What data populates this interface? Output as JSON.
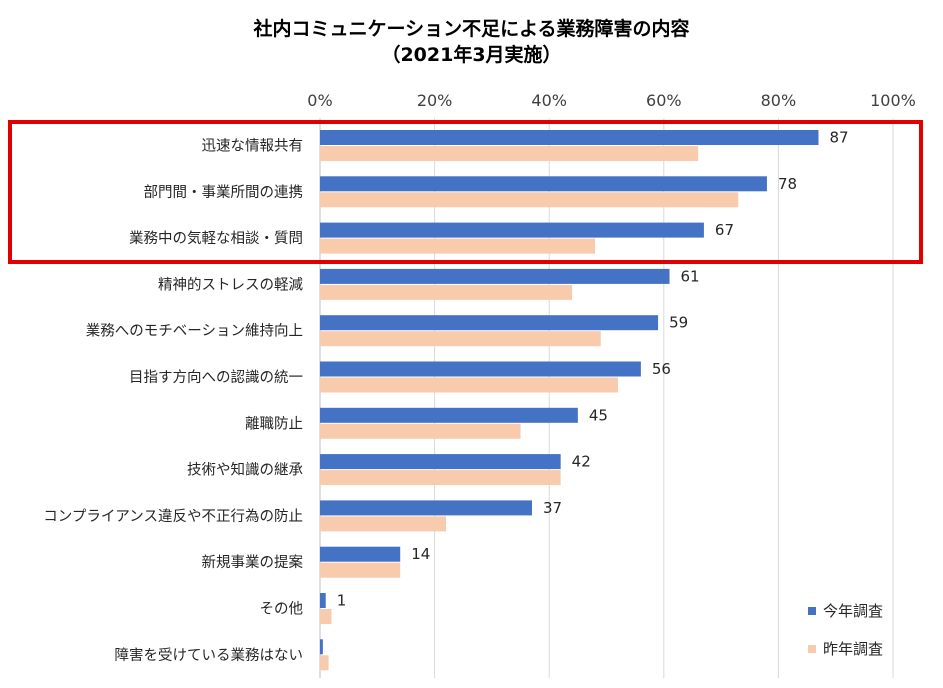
{
  "chart_data": {
    "type": "bar",
    "orientation": "horizontal",
    "title": "社内コミュニケーション不足による業務障害の内容",
    "subtitle": "（2021年3月実施）",
    "categories": [
      "迅速な情報共有",
      "部門間・事業所間の連携",
      "業務中の気軽な相談・質問",
      "精神的ストレスの軽減",
      "業務へのモチベーション維持向上",
      "目指す方向への認識の統一",
      "離職防止",
      "技術や知識の継承",
      "コンプライアンス違反や不正行為の防止",
      "新規事業の提案",
      "その他",
      "障害を受けている業務はない"
    ],
    "series": [
      {
        "name": "今年調査",
        "color": "#4472C4",
        "values": [
          87,
          78,
          67,
          61,
          59,
          56,
          45,
          42,
          37,
          14,
          1,
          0.5
        ],
        "data_labels": [
          "87",
          "78",
          "67",
          "61",
          "59",
          "56",
          "45",
          "42",
          "37",
          "14",
          "1",
          ""
        ]
      },
      {
        "name": "昨年調査",
        "color": "#F8CBAD",
        "values": [
          66,
          73,
          48,
          44,
          49,
          52,
          35,
          42,
          22,
          14,
          2,
          1.5
        ]
      }
    ],
    "xlim": [
      0,
      100
    ],
    "x_ticks": [
      "0%",
      "20%",
      "40%",
      "60%",
      "80%",
      "100%"
    ],
    "grid": true,
    "legend_position": "bottom-right",
    "highlight": {
      "categories": [
        "迅速な情報共有",
        "部門間・事業所間の連携",
        "業務中の気軽な相談・質問"
      ],
      "color": "#E00000"
    }
  }
}
